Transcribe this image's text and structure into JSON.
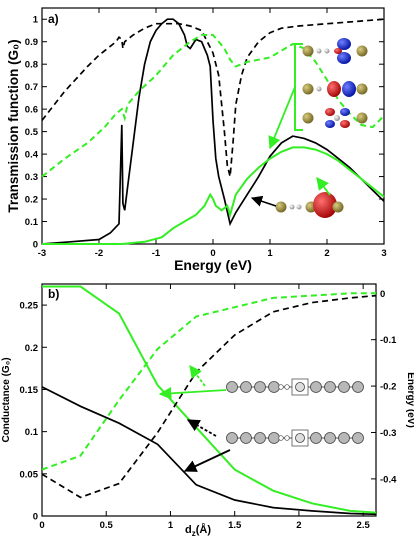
{
  "colors": {
    "black": "#000000",
    "green": "#33ee22",
    "blue": "#1f2fd0",
    "red": "#d01818",
    "atom_gold": "#8a7a2a",
    "atom_gray": "#b0b0b0"
  },
  "chart_data": [
    {
      "type": "line",
      "panel_label": "a)",
      "xlabel": "Energy (eV)",
      "ylabel": "Transmission function (G₀)",
      "xlim": [
        -3,
        3
      ],
      "ylim": [
        0,
        1.05
      ],
      "x_ticks": [
        "-3",
        "-2",
        "-1",
        "0",
        "1",
        "2",
        "3"
      ],
      "y_ticks": [
        "0",
        "0.1",
        "0.2",
        "0.3",
        "0.4",
        "0.5",
        "0.6",
        "0.7",
        "0.8",
        "0.9",
        "1"
      ],
      "series": [
        {
          "style": "black-solid",
          "x": [
            -3,
            -2.5,
            -2,
            -1.8,
            -1.65,
            -1.6,
            -1.58,
            -1.55,
            -1.5,
            -1.4,
            -1.3,
            -1.2,
            -1.1,
            -1.0,
            -0.9,
            -0.8,
            -0.7,
            -0.6,
            -0.5,
            -0.45,
            -0.4,
            -0.3,
            -0.2,
            -0.1,
            -0.05,
            0.0,
            0.05,
            0.1,
            0.2,
            0.3,
            0.4,
            0.6,
            0.8,
            1.0,
            1.2,
            1.4,
            1.6,
            1.8,
            2.0,
            2.2,
            2.4,
            2.6,
            2.8,
            3.0
          ],
          "y": [
            0,
            0.01,
            0.02,
            0.05,
            0.09,
            0.53,
            0.18,
            0.15,
            0.25,
            0.45,
            0.65,
            0.8,
            0.9,
            0.95,
            0.98,
            1.0,
            1.0,
            0.98,
            0.93,
            0.88,
            0.87,
            0.91,
            0.9,
            0.84,
            0.79,
            0.55,
            0.38,
            0.3,
            0.2,
            0.09,
            0.14,
            0.22,
            0.3,
            0.39,
            0.45,
            0.48,
            0.47,
            0.45,
            0.42,
            0.38,
            0.34,
            0.29,
            0.24,
            0.19
          ]
        },
        {
          "style": "black-dashed",
          "x": [
            -3,
            -2.6,
            -2.2,
            -2.0,
            -1.8,
            -1.7,
            -1.65,
            -1.6,
            -1.58,
            -1.55,
            -1.5,
            -1.4,
            -1.2,
            -1.0,
            -0.8,
            -0.6,
            -0.4,
            -0.2,
            0.0,
            0.1,
            0.2,
            0.25,
            0.3,
            0.35,
            0.4,
            0.5,
            0.6,
            0.8,
            1.0,
            1.2,
            1.5,
            2.0,
            2.5,
            3.0
          ],
          "y": [
            0.55,
            0.68,
            0.79,
            0.84,
            0.88,
            0.9,
            0.92,
            0.91,
            0.87,
            0.9,
            0.91,
            0.93,
            0.96,
            0.98,
            0.98,
            0.98,
            0.97,
            0.95,
            0.85,
            0.75,
            0.5,
            0.35,
            0.3,
            0.45,
            0.62,
            0.75,
            0.83,
            0.9,
            0.94,
            0.96,
            0.97,
            0.98,
            0.99,
            1.0
          ]
        },
        {
          "style": "green-solid",
          "x": [
            -3,
            -2.5,
            -2,
            -1.6,
            -1.2,
            -0.9,
            -0.7,
            -0.5,
            -0.3,
            -0.15,
            -0.05,
            0.0,
            0.05,
            0.15,
            0.25,
            0.3,
            0.4,
            0.6,
            0.8,
            1.0,
            1.2,
            1.4,
            1.6,
            1.8,
            2.0,
            2.2,
            2.4,
            2.6,
            2.8,
            3.0
          ],
          "y": [
            0,
            0,
            0,
            0,
            0.01,
            0.03,
            0.07,
            0.1,
            0.13,
            0.17,
            0.22,
            0.2,
            0.17,
            0.15,
            0.17,
            0.13,
            0.22,
            0.29,
            0.34,
            0.38,
            0.41,
            0.43,
            0.43,
            0.42,
            0.4,
            0.37,
            0.33,
            0.29,
            0.25,
            0.21
          ]
        },
        {
          "style": "green-dashed",
          "x": [
            -3,
            -2.6,
            -2.2,
            -1.9,
            -1.7,
            -1.6,
            -1.55,
            -1.5,
            -1.3,
            -1.0,
            -0.7,
            -0.4,
            -0.2,
            0.0,
            0.1,
            0.2,
            0.3,
            0.4,
            0.5,
            0.6,
            0.8,
            1.0,
            1.2,
            1.4,
            1.6,
            1.8,
            2.0,
            2.2,
            2.4,
            2.6,
            2.8,
            3.0
          ],
          "y": [
            0.3,
            0.38,
            0.45,
            0.52,
            0.58,
            0.6,
            0.56,
            0.62,
            0.68,
            0.75,
            0.84,
            0.9,
            0.93,
            0.93,
            0.9,
            0.87,
            0.82,
            0.79,
            0.8,
            0.81,
            0.82,
            0.83,
            0.86,
            0.89,
            0.87,
            0.81,
            0.73,
            0.64,
            0.58,
            0.53,
            0.52,
            0.57
          ]
        }
      ]
    },
    {
      "type": "line",
      "panel_label": "b)",
      "xlabel": "d",
      "xlabel_sub": "z",
      "xlabel_unit": "(Å)",
      "ylabel": "Conductance (G₀)",
      "ylabel_right": "Energy (eV)",
      "xlim": [
        0,
        2.6
      ],
      "ylim": [
        0,
        0.275
      ],
      "ylim_right": [
        -0.48,
        0.02
      ],
      "x_ticks": [
        "0",
        "0.5",
        "1",
        "1.5",
        "2",
        "2.5"
      ],
      "y_ticks": [
        "0",
        "0.05",
        "0.1",
        "0.15",
        "0.2",
        "0.25"
      ],
      "y_ticks_right": [
        "-0.4",
        "-0.3",
        "-0.2",
        "-0.1",
        "0"
      ],
      "series": [
        {
          "style": "green-solid",
          "axis": "left",
          "x": [
            0,
            0.3,
            0.6,
            0.9,
            1.2,
            1.5,
            1.8,
            2.1,
            2.4,
            2.6
          ],
          "y": [
            0.272,
            0.272,
            0.24,
            0.155,
            0.105,
            0.055,
            0.03,
            0.015,
            0.006,
            0.004
          ]
        },
        {
          "style": "black-solid",
          "axis": "left",
          "x": [
            0,
            0.3,
            0.6,
            0.9,
            1.2,
            1.5,
            1.8,
            2.1,
            2.4,
            2.6
          ],
          "y": [
            0.153,
            0.13,
            0.11,
            0.085,
            0.037,
            0.019,
            0.01,
            0.006,
            0.003,
            0.002
          ]
        },
        {
          "style": "green-dashed",
          "axis": "right",
          "x": [
            0,
            0.3,
            0.6,
            0.9,
            1.2,
            1.5,
            1.8,
            2.1,
            2.4,
            2.6
          ],
          "y": [
            -0.38,
            -0.35,
            -0.23,
            -0.12,
            -0.05,
            -0.03,
            -0.01,
            -0.005,
            0.0,
            0.0
          ]
        },
        {
          "style": "black-dashed",
          "axis": "right",
          "x": [
            0,
            0.3,
            0.6,
            0.9,
            1.2,
            1.5,
            1.8,
            2.1,
            2.4,
            2.6
          ],
          "y": [
            -0.39,
            -0.44,
            -0.41,
            -0.3,
            -0.17,
            -0.09,
            -0.04,
            -0.02,
            -0.01,
            -0.005
          ]
        }
      ]
    }
  ]
}
